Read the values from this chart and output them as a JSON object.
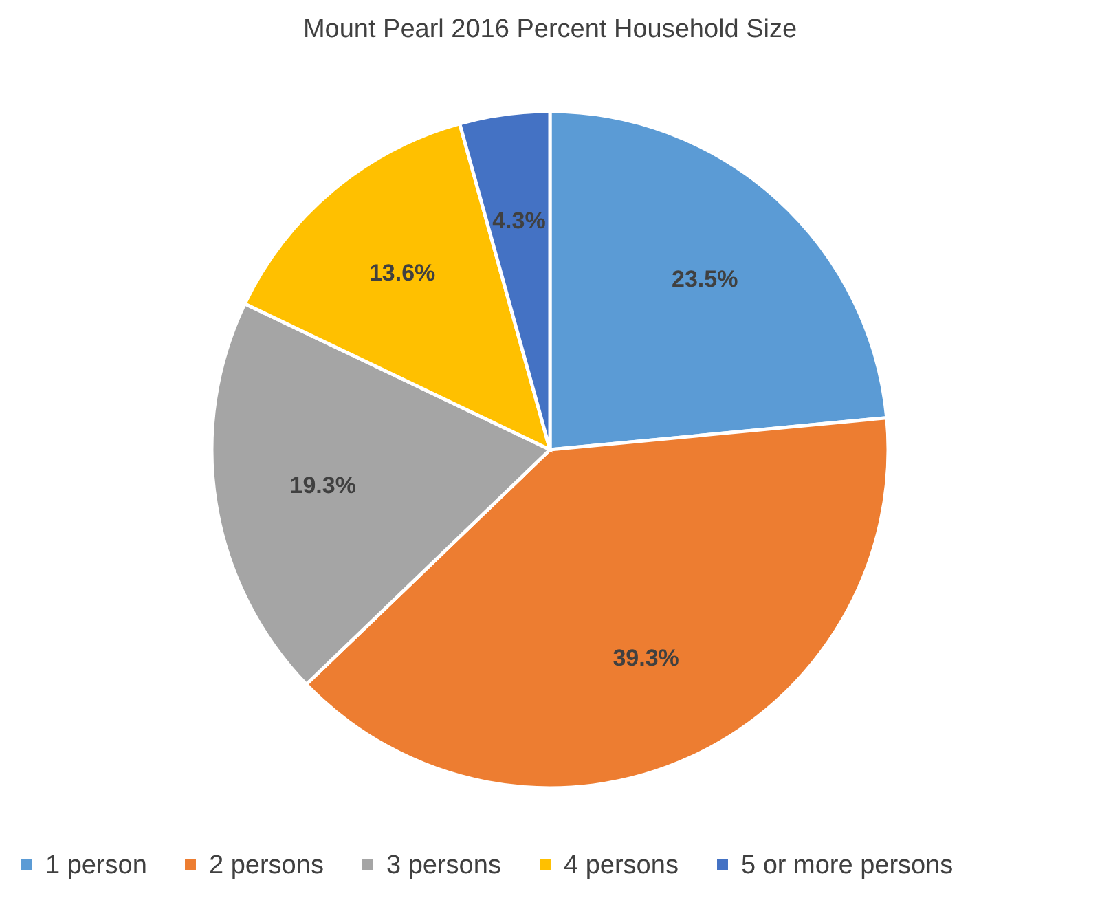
{
  "chart_data": {
    "type": "pie",
    "title": "Mount Pearl 2016 Percent Household Size",
    "categories": [
      "1 person",
      "2 persons",
      "3 persons",
      "4 persons",
      "5 or more persons"
    ],
    "values": [
      23.5,
      39.3,
      19.3,
      13.6,
      4.3
    ],
    "value_labels": [
      "23.5%",
      "39.3%",
      "19.3%",
      "13.6%",
      "4.3%"
    ],
    "colors": [
      "#5b9bd5",
      "#ed7d31",
      "#a5a5a5",
      "#ffc000",
      "#4472c4"
    ],
    "legend": "bottom"
  }
}
